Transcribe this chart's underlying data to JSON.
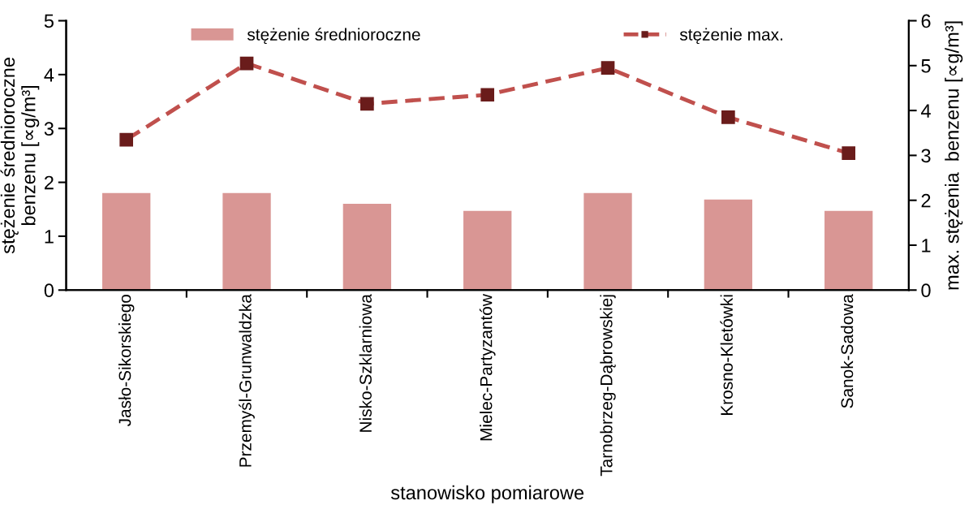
{
  "chart_data": {
    "type": "bar",
    "categories": [
      "Jasło-Sikorskiego",
      "Przemyśl-Grunwaldzka",
      "Nisko-Szklarniowa",
      "Mielec-Partyzantów",
      "Tarnobrzeg-Dąbrowskiej",
      "Krosno-Kletówki",
      "Sanok-Sadowa"
    ],
    "xlabel": "stanowisko pomiarowe",
    "ylabel": "stężenie średnioroczne\nbenzenu [∝g/m³]",
    "y2label": "max. stężenia  benzenu [∝g/m³]",
    "series": [
      {
        "name": "stężenie średnioroczne",
        "color": "#d99694",
        "values": [
          1.8,
          1.8,
          1.6,
          1.47,
          1.8,
          1.68,
          1.47
        ]
      },
      {
        "name": "stężenie max.",
        "type": "line",
        "axis": "y2",
        "color": "#c0504d",
        "marker": "square",
        "line_style": "dashed",
        "values": [
          3.35,
          5.05,
          4.15,
          4.35,
          4.95,
          3.85,
          3.05
        ]
      }
    ],
    "ylim": [
      0,
      5
    ],
    "yticks": [
      0,
      1,
      2,
      3,
      4,
      5
    ],
    "y2lim": [
      0,
      6
    ],
    "y2ticks": [
      0,
      1,
      2,
      3,
      4,
      5,
      6
    ],
    "grid": false,
    "legend": "top"
  }
}
